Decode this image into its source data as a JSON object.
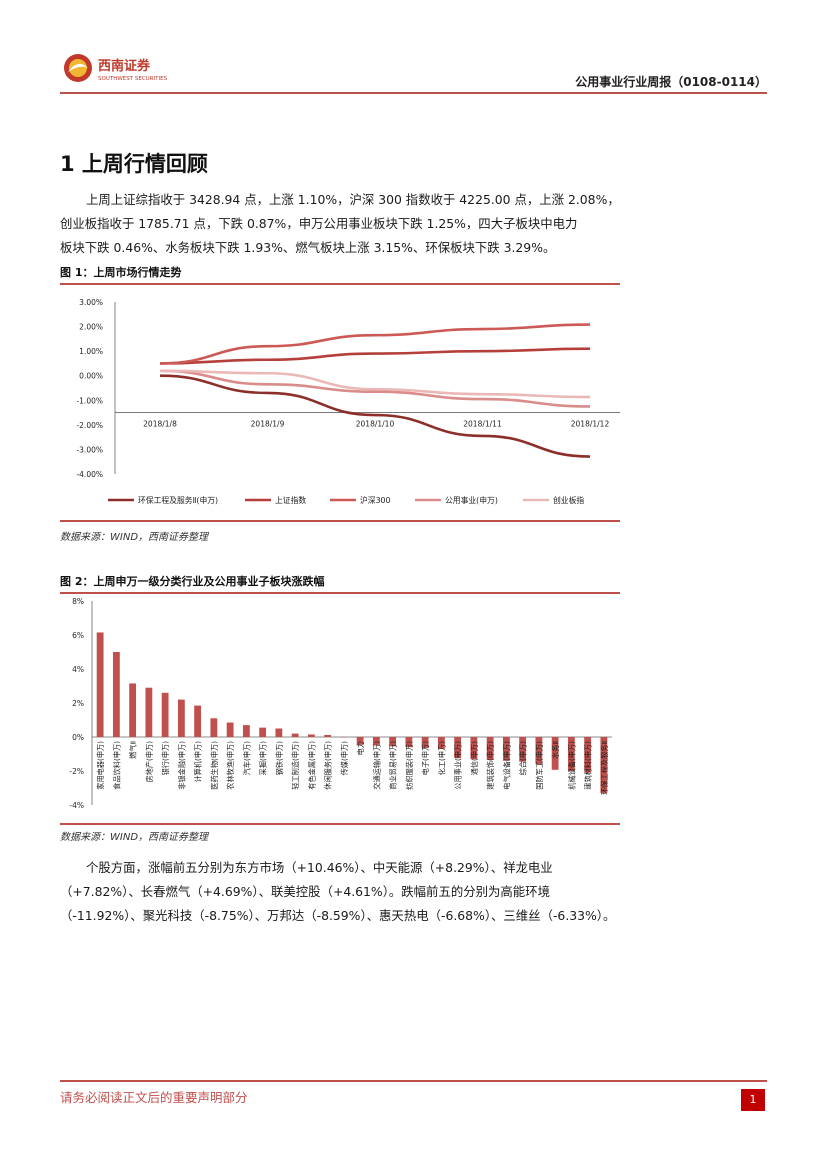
{
  "header": {
    "brand_cn": "西南证券",
    "brand_en": "SOUTHWEST SECURITIES",
    "report_name": "公用事业行业周报（0108-0114）"
  },
  "section": {
    "title": "1 上周行情回顾"
  },
  "paragraphs": [
    {
      "lines": [
        "上周上证综指收于 3428.94 点，上涨 1.10%，沪深 300 指数收于 4225.00 点，上涨 2.08%，",
        "创业板指收于 1785.71 点，下跌 0.87%，申万公用事业板块下跌 1.25%，四大子板块中电力",
        "板块下跌 0.46%、水务板块下跌 1.93%、燃气板块上涨 3.15%、环保板块下跌 3.29%。"
      ]
    },
    {
      "lines": [
        "个股方面，涨幅前五分别为东方市场（+10.46%）、中天能源（+8.29%）、祥龙电业",
        "（+7.82%）、长春燃气（+4.69%）、联美控股（+4.61%）。跌幅前五的分别为高能环境",
        "（-11.92%）、聚光科技（-8.75%）、万邦达（-8.59%）、惠天热电（-6.68%）、三维丝（-6.33%）。"
      ]
    }
  ],
  "figure1": {
    "title": "图 1：上周市场行情走势",
    "source": "数据来源：WIND，西南证券整理"
  },
  "figure2": {
    "title": "图 2：上周申万一级分类行业及公用事业子板块涨跌幅",
    "source": "数据来源：WIND，西南证券整理"
  },
  "footer": {
    "disclaimer": "请务必阅读正文后的重要声明部分",
    "page": "1"
  },
  "chart_data": [
    {
      "type": "line",
      "x": [
        "2018/1/8",
        "2018/1/9",
        "2018/1/10",
        "2018/1/11",
        "2018/1/12"
      ],
      "ylim": [
        -4,
        3
      ],
      "yticks": [
        "3.00%",
        "2.00%",
        "1.00%",
        "0.00%",
        "-1.00%",
        "-2.00%",
        "-3.00%",
        "-4.00%"
      ],
      "series": [
        {
          "name": "环保工程及服务Ⅱ(申万)",
          "color": "#8c2f2b",
          "values": [
            0.0,
            -0.7,
            -1.6,
            -2.45,
            -3.29
          ]
        },
        {
          "name": "上证指数",
          "color": "#b5403b",
          "values": [
            0.5,
            0.65,
            0.9,
            1.0,
            1.1
          ]
        },
        {
          "name": "沪深300",
          "color": "#cc5955",
          "values": [
            0.5,
            1.2,
            1.65,
            1.9,
            2.08
          ]
        },
        {
          "name": "公用事业(申万)",
          "color": "#d98c89",
          "values": [
            0.2,
            -0.35,
            -0.65,
            -0.95,
            -1.25
          ]
        },
        {
          "name": "创业板指",
          "color": "#eab8b6",
          "values": [
            0.2,
            0.1,
            -0.55,
            -0.75,
            -0.87
          ]
        }
      ],
      "legend": "bottom"
    },
    {
      "type": "bar",
      "ylim": [
        -4,
        8
      ],
      "yticks": [
        "8%",
        "6%",
        "4%",
        "2%",
        "0%",
        "-2%",
        "-4%"
      ],
      "color": "#c0504d",
      "categories": [
        "家用电器(申万)",
        "食品饮料(申万)",
        "燃气Ⅱ",
        "房地产(申万)",
        "银行(申万)",
        "非银金融(申万)",
        "计算机(申万)",
        "医药生物(申万)",
        "农林牧渔(申万)",
        "汽车(申万)",
        "采掘(申万)",
        "钢铁(申万)",
        "轻工制造(申万)",
        "有色金属(申万)",
        "休闲服务(申万)",
        "传媒(申万)",
        "电力",
        "交通运输(申万)",
        "商业贸易(申万)",
        "纺织服装(申万)",
        "电子(申万)",
        "化工(申万)",
        "公用事业(申万)",
        "通信(申万)",
        "建筑装饰(申万)",
        "电气设备(申万)",
        "综合(申万)",
        "国防军工(申万)",
        "水务Ⅱ",
        "机械设备(申万)",
        "建筑材料(申万)",
        "环保工程及服务Ⅱ"
      ],
      "values": [
        6.15,
        5.0,
        3.15,
        2.9,
        2.6,
        2.2,
        1.85,
        1.1,
        0.85,
        0.7,
        0.55,
        0.5,
        0.2,
        0.15,
        0.12,
        0.0,
        -0.46,
        -0.5,
        -0.55,
        -0.6,
        -0.65,
        -0.7,
        -1.25,
        -1.3,
        -1.35,
        -1.4,
        -1.45,
        -1.6,
        -1.93,
        -2.0,
        -2.1,
        -3.29
      ]
    }
  ]
}
